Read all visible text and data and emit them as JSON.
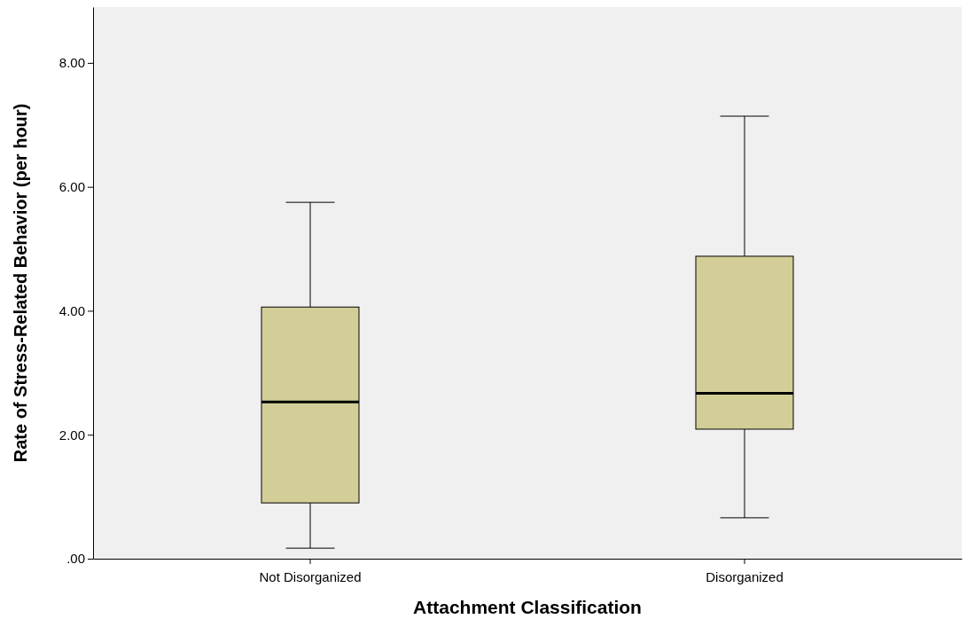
{
  "chart_data": {
    "type": "box",
    "xlabel": "Attachment Classification",
    "ylabel": "Rate of Stress-Related Behavior (per hour)",
    "categories": [
      "Not Disorganized",
      "Disorganized"
    ],
    "color": "#d3ce97",
    "boxes": [
      {
        "low": 0.17,
        "q1": 0.9,
        "median": 2.53,
        "q3": 4.06,
        "high": 5.75
      },
      {
        "low": 0.66,
        "q1": 2.09,
        "median": 2.67,
        "q3": 4.88,
        "high": 7.14
      }
    ],
    "ylim": [
      0,
      8.9
    ],
    "yticks": [
      {
        "value": 0,
        "label": ".00"
      },
      {
        "value": 2,
        "label": "2.00"
      },
      {
        "value": 4,
        "label": "4.00"
      },
      {
        "value": 6,
        "label": "6.00"
      },
      {
        "value": 8,
        "label": "8.00"
      }
    ],
    "grid": false
  }
}
